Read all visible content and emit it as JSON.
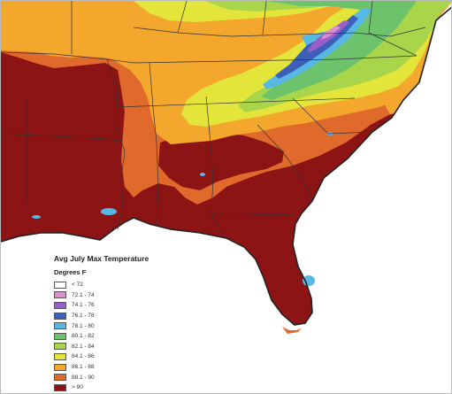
{
  "legend": {
    "title": "Avg July Max Temperature",
    "subtitle": "Degrees F",
    "items": [
      {
        "label": "< 72",
        "color": "#ffffff"
      },
      {
        "label": "72.1 - 74",
        "color": "#d890d0"
      },
      {
        "label": "74.1 - 76",
        "color": "#9a5ec8"
      },
      {
        "label": "76.1 - 78",
        "color": "#3d5fb8"
      },
      {
        "label": "78.1 - 80",
        "color": "#57b8e6"
      },
      {
        "label": "80.1 - 82",
        "color": "#6cc36b"
      },
      {
        "label": "82.1 - 84",
        "color": "#a9d54a"
      },
      {
        "label": "84.1 - 86",
        "color": "#e4e53a"
      },
      {
        "label": "86.1 - 88",
        "color": "#f3a72d"
      },
      {
        "label": "88.1 - 90",
        "color": "#e06a2c"
      },
      {
        "label": "> 90",
        "color": "#8c1414"
      }
    ]
  },
  "colors": {
    "water": "#ffffff",
    "coastline": "#222222",
    "state_border": "#333333"
  }
}
